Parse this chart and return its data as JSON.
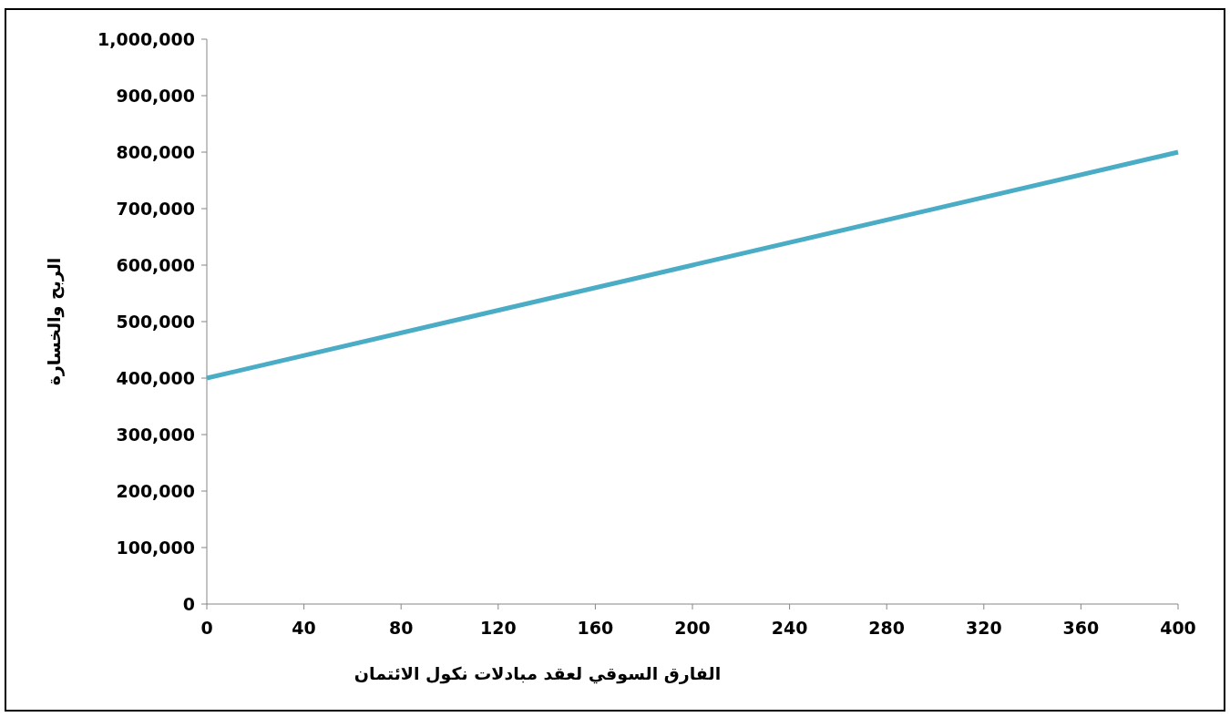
{
  "chart_data": {
    "type": "line",
    "xlabel": "الفارق السوقي لعقد مبادلات نكول الائتمان",
    "ylabel": "الربح والخسارة",
    "x": [
      0,
      400
    ],
    "series": [
      {
        "color": "#4bacc6",
        "values": [
          400000,
          800000
        ]
      }
    ],
    "xlim": [
      0,
      400
    ],
    "xticks": [
      0,
      40,
      80,
      120,
      160,
      200,
      240,
      280,
      320,
      360,
      400
    ],
    "ylim": [
      0,
      1000000
    ],
    "yticks": [
      {
        "value": 0,
        "label": "0"
      },
      {
        "value": 100000,
        "label": "100,000"
      },
      {
        "value": 200000,
        "label": "200,000"
      },
      {
        "value": 300000,
        "label": "300,000"
      },
      {
        "value": 400000,
        "label": "400,000"
      },
      {
        "value": 500000,
        "label": "500,000"
      },
      {
        "value": 600000,
        "label": "600,000"
      },
      {
        "value": 700000,
        "label": "700,000"
      },
      {
        "value": 800000,
        "label": "800,000"
      },
      {
        "value": 900000,
        "label": "900,000"
      },
      {
        "value": 1000000,
        "label": "1,000,000"
      }
    ],
    "grid": false,
    "marker": "none",
    "line_style": "solid"
  }
}
